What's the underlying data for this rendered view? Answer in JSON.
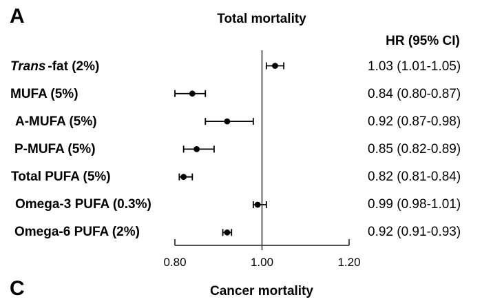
{
  "panel_a": {
    "label": "A",
    "title": "Total mortality",
    "hr_header": "HR (95% CI)"
  },
  "panel_c": {
    "label": "C",
    "title": "Cancer mortality"
  },
  "chart_data": {
    "type": "forest",
    "title": "Total mortality",
    "xlabel": "",
    "ylabel": "",
    "xlim": [
      0.8,
      1.2
    ],
    "xticks": [
      0.8,
      1.0,
      1.2
    ],
    "xtick_labels": [
      "0.80",
      "1.00",
      "1.20"
    ],
    "ref_line": 1.0,
    "grid": false,
    "legend": false,
    "value_column_header": "HR (95% CI)",
    "rows": [
      {
        "label": "Trans-fat (2%)",
        "label_italic": "Trans",
        "label_rest": "-fat (2%)",
        "hr": 1.03,
        "lo": 1.01,
        "hi": 1.05,
        "hr_text": "1.03 (1.01-1.05)"
      },
      {
        "label": "MUFA (5%)",
        "label_italic": "",
        "label_rest": "MUFA (5%)",
        "hr": 0.84,
        "lo": 0.8,
        "hi": 0.87,
        "hr_text": "0.84 (0.80-0.87)"
      },
      {
        "label": "A-MUFA (5%)",
        "label_italic": "",
        "label_rest": "A-MUFA (5%)",
        "hr": 0.92,
        "lo": 0.87,
        "hi": 0.98,
        "hr_text": "0.92 (0.87-0.98)"
      },
      {
        "label": "P-MUFA (5%)",
        "label_italic": "",
        "label_rest": "P-MUFA (5%)",
        "hr": 0.85,
        "lo": 0.82,
        "hi": 0.89,
        "hr_text": "0.85 (0.82-0.89)"
      },
      {
        "label": "Total PUFA (5%)",
        "label_italic": "",
        "label_rest": "Total PUFA (5%)",
        "hr": 0.82,
        "lo": 0.81,
        "hi": 0.84,
        "hr_text": "0.82 (0.81-0.84)"
      },
      {
        "label": "Omega-3 PUFA (0.3%)",
        "label_italic": "",
        "label_rest": "Omega-3 PUFA (0.3%)",
        "hr": 0.99,
        "lo": 0.98,
        "hi": 1.01,
        "hr_text": "0.99 (0.98-1.01)"
      },
      {
        "label": "Omega-6 PUFA (2%)",
        "label_italic": "",
        "label_rest": "Omega-6 PUFA (2%)",
        "hr": 0.92,
        "lo": 0.91,
        "hi": 0.93,
        "hr_text": "0.92 (0.91-0.93)"
      }
    ],
    "colors": {
      "marker": "#000000",
      "axis": "#3a3a3a",
      "text": "#000000",
      "background": "#ffffff"
    }
  }
}
